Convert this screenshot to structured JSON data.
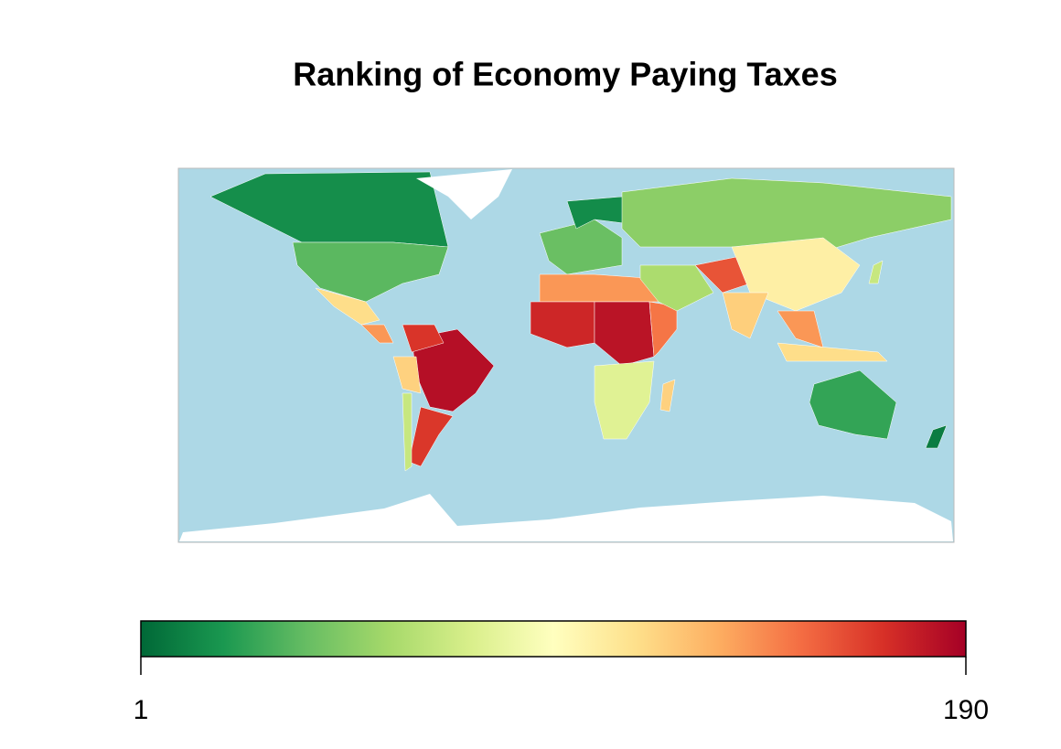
{
  "map": {
    "title": "Ranking of Economy   Paying Taxes",
    "legend": {
      "lim": [
        1,
        190
      ],
      "ticks": [
        1,
        190
      ],
      "colors": [
        "#006837",
        "#1a9850",
        "#66bd63",
        "#a6d96a",
        "#d9ef8b",
        "#ffffbf",
        "#fee08b",
        "#fdae61",
        "#f46d43",
        "#d73027",
        "#a50026"
      ]
    },
    "ocean_color": "#add8e6",
    "regions": [
      16,
      36,
      115,
      140,
      184,
      170,
      120,
      169,
      70,
      40,
      15,
      50,
      140,
      175,
      182,
      150,
      80,
      120,
      60,
      160,
      105,
      121,
      140,
      115,
      26,
      9,
      70
    ]
  }
}
